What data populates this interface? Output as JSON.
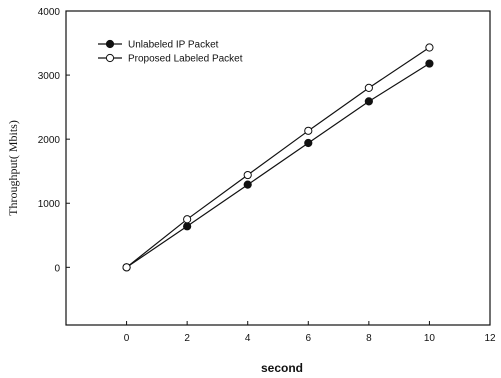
{
  "chart_data": {
    "type": "line",
    "title": "",
    "xlabel": "second",
    "ylabel": "Throughput( Mbits)",
    "xlim": [
      -2,
      12
    ],
    "ylim": [
      -900,
      4000
    ],
    "x_ticks": [
      0,
      2,
      4,
      6,
      8,
      10,
      12
    ],
    "y_ticks": [
      0,
      1000,
      2000,
      3000,
      4000
    ],
    "grid": false,
    "legend_position": "top-left",
    "series": [
      {
        "name": "Unlabeled IP Packet",
        "marker": "filled-circle",
        "color": "#111111",
        "x": [
          0,
          2,
          4,
          6,
          8,
          10
        ],
        "y": [
          0,
          640,
          1290,
          1940,
          2590,
          3180
        ]
      },
      {
        "name": "Proposed Labeled Packet",
        "marker": "open-circle",
        "color": "#111111",
        "x": [
          0,
          2,
          4,
          6,
          8,
          10
        ],
        "y": [
          0,
          750,
          1440,
          2130,
          2800,
          3430
        ]
      }
    ]
  }
}
